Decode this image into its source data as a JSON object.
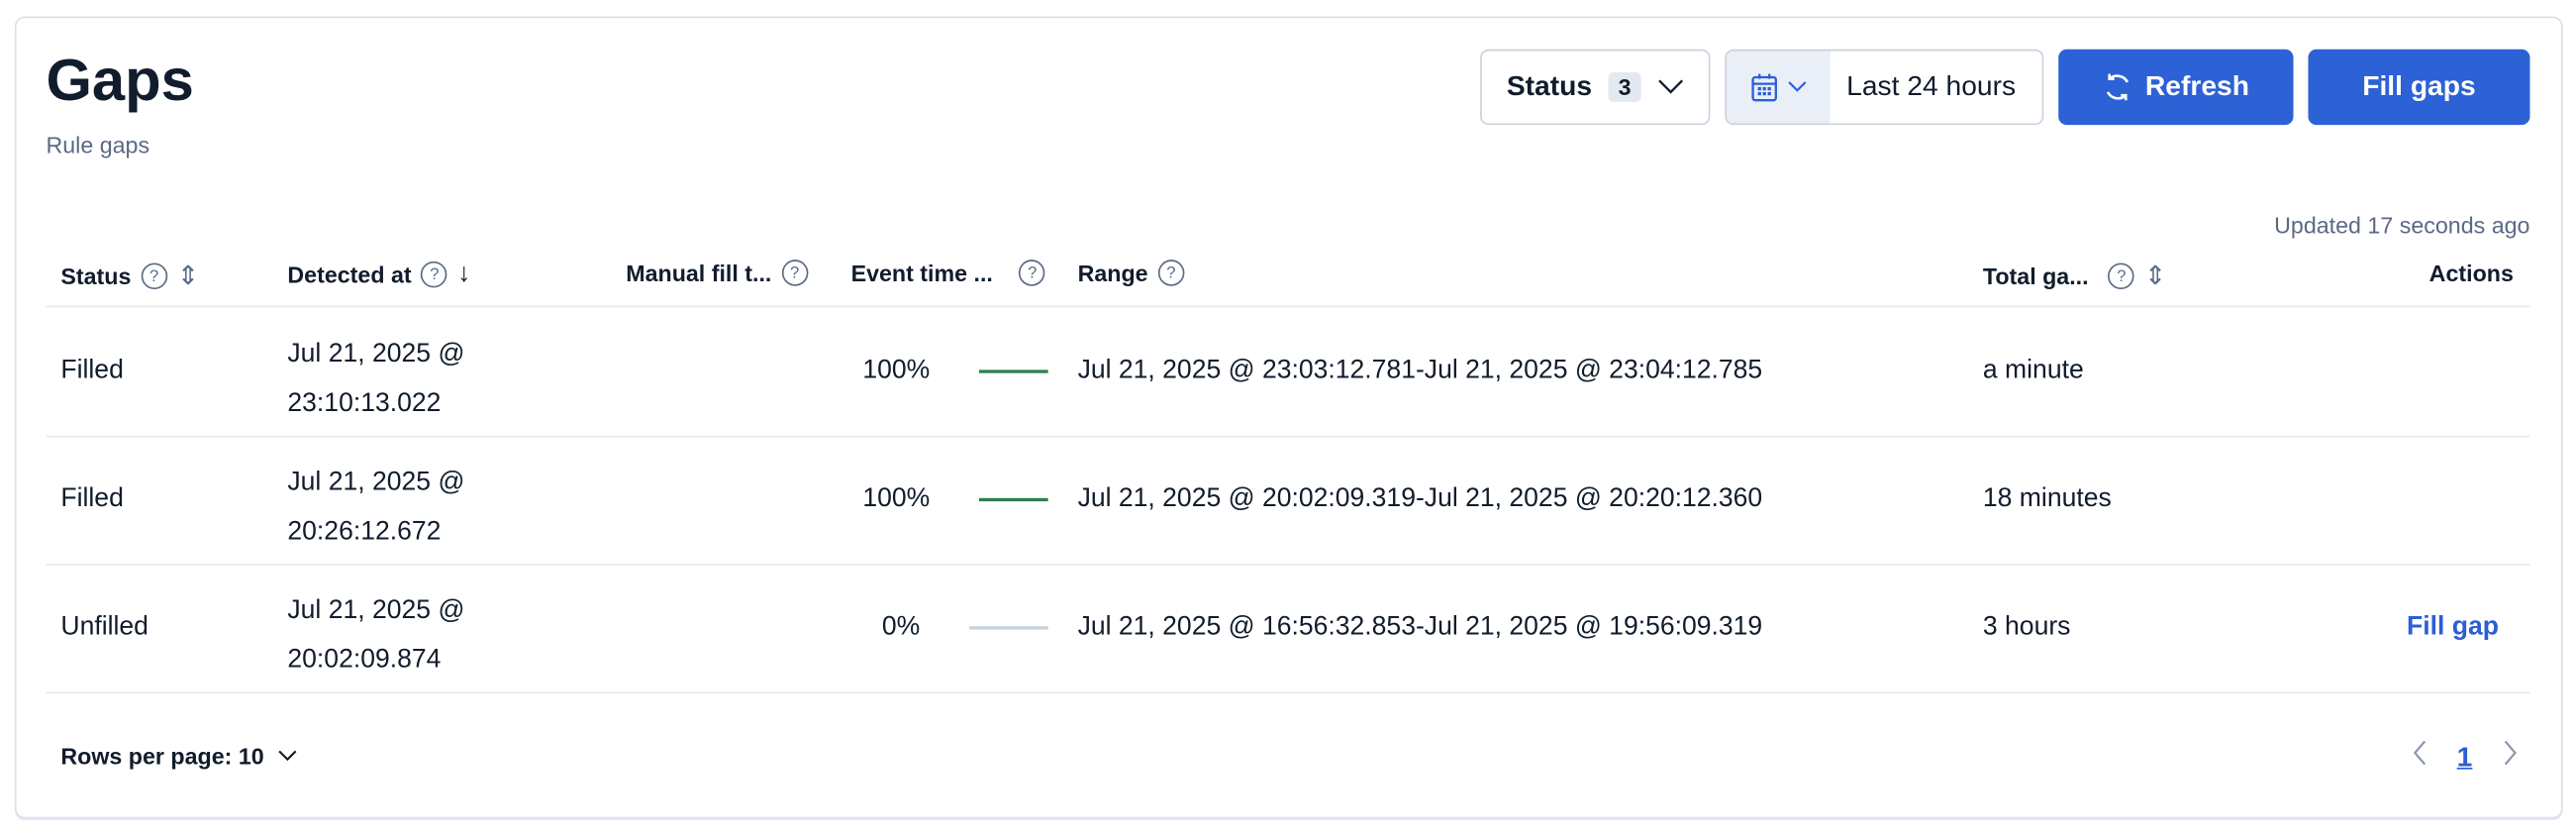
{
  "header": {
    "title": "Gaps",
    "subtitle": "Rule gaps"
  },
  "toolbar": {
    "status_label": "Status",
    "status_count": "3",
    "date_range": "Last 24 hours",
    "refresh_label": "Refresh",
    "fill_gaps_label": "Fill gaps"
  },
  "updated": "Updated 17 seconds ago",
  "table": {
    "columns": [
      "Status",
      "Detected at",
      "Manual fill t...",
      "Event time ...",
      "Range",
      "Total ga...",
      "Actions"
    ],
    "rows": [
      {
        "status": "Filled",
        "detected_date": "Jul 21, 2025 @",
        "detected_time": "23:10:13.022",
        "event_pct": "100%",
        "progress": 100,
        "range": "Jul 21, 2025 @ 23:03:12.781-Jul 21, 2025 @ 23:04:12.785",
        "total": "a minute",
        "action": ""
      },
      {
        "status": "Filled",
        "detected_date": "Jul 21, 2025 @",
        "detected_time": "20:26:12.672",
        "event_pct": "100%",
        "progress": 100,
        "range": "Jul 21, 2025 @ 20:02:09.319-Jul 21, 2025 @ 20:20:12.360",
        "total": "18 minutes",
        "action": ""
      },
      {
        "status": "Unfilled",
        "detected_date": "Jul 21, 2025 @",
        "detected_time": "20:02:09.874",
        "event_pct": "0%",
        "progress": 0,
        "range": "Jul 21, 2025 @ 16:56:32.853-Jul 21, 2025 @ 19:56:09.319",
        "total": "3 hours",
        "action": "Fill gap"
      }
    ]
  },
  "pagination": {
    "rows_per_page": "Rows per page: 10",
    "current_page": "1"
  },
  "colors": {
    "accent": "#2c62d6",
    "success": "#2d8050"
  }
}
